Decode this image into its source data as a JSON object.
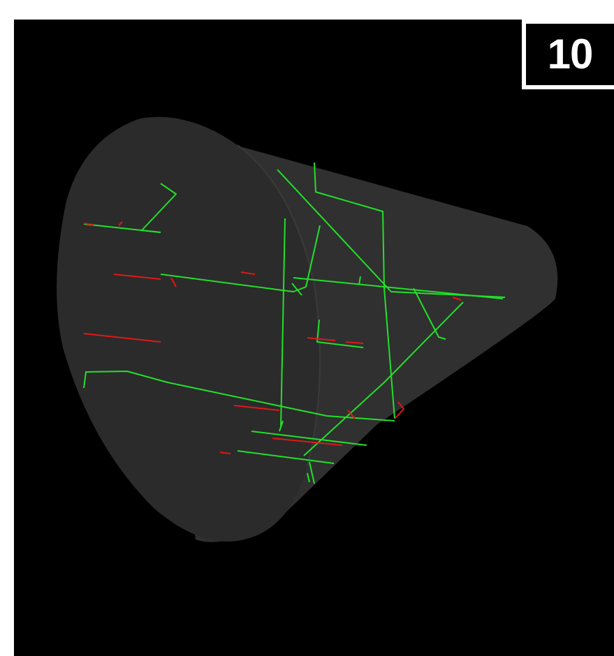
{
  "frame_label": "10",
  "colors": {
    "background": "#000000",
    "cone_body": "#2f2f2f",
    "cone_base": "#2a2a2a",
    "branch_green": "#22e02a",
    "branch_red": "#e01818",
    "badge_border": "#ffffff",
    "badge_text": "#ffffff"
  },
  "scene": {
    "object": "truncated cone",
    "segments_green": 27,
    "segments_red": 12
  }
}
